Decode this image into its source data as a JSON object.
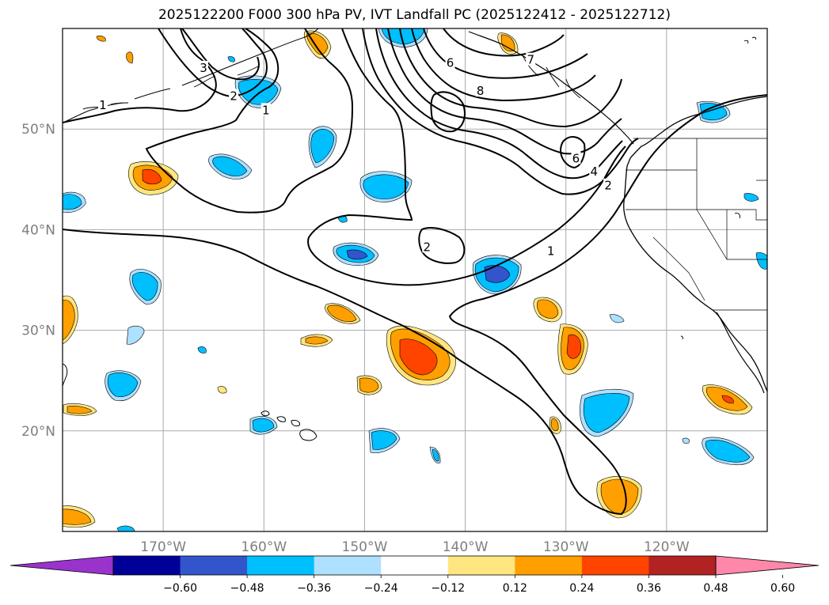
{
  "title": "2025122200 F000 300 hPa PV, IVT Landfall PC (2025122412 - 2025122712)",
  "map": {
    "projection": "PlateCarree",
    "lon_range": [
      -180,
      -110
    ],
    "lat_range": [
      10,
      60
    ],
    "lon_ticks": [
      {
        "lon": -170,
        "label": "170°W"
      },
      {
        "lon": -160,
        "label": "160°W"
      },
      {
        "lon": -150,
        "label": "150°W"
      },
      {
        "lon": -140,
        "label": "140°W"
      },
      {
        "lon": -130,
        "label": "130°W"
      },
      {
        "lon": -120,
        "label": "120°W"
      }
    ],
    "lat_ticks": [
      {
        "lat": 50,
        "label": "50°N"
      },
      {
        "lat": 40,
        "label": "40°N"
      },
      {
        "lat": 30,
        "label": "30°N"
      },
      {
        "lat": 20,
        "label": "20°N"
      }
    ],
    "pv_contour_labels": [
      {
        "value": "1",
        "lon": -176,
        "lat": 52.3
      },
      {
        "value": "1",
        "lon": -159.8,
        "lat": 51.8
      },
      {
        "value": "2",
        "lon": -163,
        "lat": 53.2
      },
      {
        "value": "3",
        "lon": -166,
        "lat": 56.0
      },
      {
        "value": "2",
        "lon": -143.8,
        "lat": 38.2
      },
      {
        "value": "1",
        "lon": -131.5,
        "lat": 37.8
      },
      {
        "value": "2",
        "lon": -125.8,
        "lat": 44.3
      },
      {
        "value": "4",
        "lon": -127.2,
        "lat": 45.7
      },
      {
        "value": "6",
        "lon": -141.5,
        "lat": 56.5
      },
      {
        "value": "8",
        "lon": -138.5,
        "lat": 53.7
      },
      {
        "value": "7",
        "lon": -133.5,
        "lat": 56.8
      },
      {
        "value": "6",
        "lon": -129.0,
        "lat": 47.0
      }
    ]
  },
  "colorbar": {
    "colors": [
      "#9933cc",
      "#000099",
      "#3355cc",
      "#00bfff",
      "#aee0ff",
      "#ffffff",
      "#ffe680",
      "#ff9f00",
      "#ff4400",
      "#b22222",
      "#ff88aa"
    ],
    "tick_labels": [
      "−0.60",
      "−0.48",
      "−0.36",
      "−0.24",
      "−0.12",
      "0.12",
      "0.24",
      "0.36",
      "0.48",
      "0.60"
    ]
  }
}
